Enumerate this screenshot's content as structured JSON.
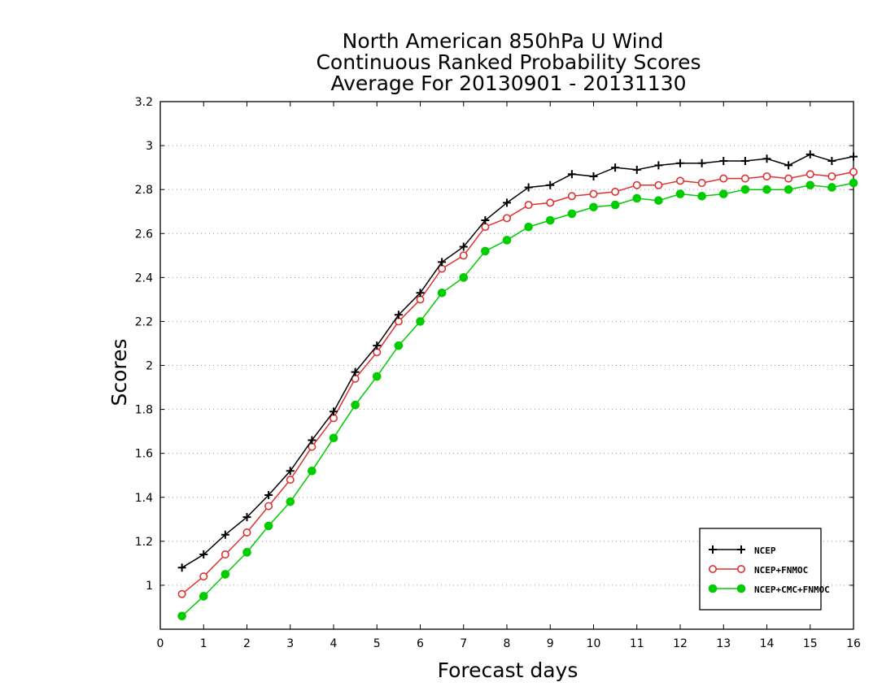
{
  "chart_data": {
    "type": "line",
    "title": "North American 850hPa U Wind",
    "subtitle": [
      "Continuous Ranked Probability Scores",
      "Average For 20130901 - 20131130"
    ],
    "xlabel": "Forecast days",
    "ylabel": "Scores",
    "xlim": [
      0,
      16
    ],
    "ylim": [
      0.8,
      3.2
    ],
    "xticks": [
      "0",
      "1",
      "2",
      "3",
      "4",
      "5",
      "6",
      "7",
      "8",
      "9",
      "10",
      "11",
      "12",
      "13",
      "14",
      "15",
      "16"
    ],
    "yticks": [
      "1",
      "1.2",
      "1.4",
      "1.6",
      "1.8",
      "2",
      "2.2",
      "2.4",
      "2.6",
      "2.8",
      "3",
      "3.2"
    ],
    "grid": "horizontal dotted",
    "legend_position": "bottom-right",
    "x": [
      0.5,
      1,
      1.5,
      2,
      2.5,
      3,
      3.5,
      4,
      4.5,
      5,
      5.5,
      6,
      6.5,
      7,
      7.5,
      8,
      8.5,
      9,
      9.5,
      10,
      10.5,
      11,
      11.5,
      12,
      12.5,
      13,
      13.5,
      14,
      14.5,
      15,
      15.5,
      16
    ],
    "series": [
      {
        "name": "NCEP",
        "color": "#000000",
        "marker": "plus",
        "values": [
          1.08,
          1.14,
          1.23,
          1.31,
          1.41,
          1.52,
          1.66,
          1.79,
          1.97,
          2.09,
          2.23,
          2.33,
          2.47,
          2.54,
          2.66,
          2.74,
          2.81,
          2.82,
          2.87,
          2.86,
          2.9,
          2.89,
          2.91,
          2.92,
          2.92,
          2.93,
          2.93,
          2.94,
          2.91,
          2.96,
          2.93,
          2.95
        ]
      },
      {
        "name": "NCEP+FNMOC",
        "color": "#e03030",
        "marker": "open-circle",
        "values": [
          0.96,
          1.04,
          1.14,
          1.24,
          1.36,
          1.48,
          1.63,
          1.76,
          1.94,
          2.06,
          2.2,
          2.3,
          2.44,
          2.5,
          2.63,
          2.67,
          2.73,
          2.74,
          2.77,
          2.78,
          2.79,
          2.82,
          2.82,
          2.84,
          2.83,
          2.85,
          2.85,
          2.86,
          2.85,
          2.87,
          2.86,
          2.88
        ]
      },
      {
        "name": "NCEP+CMC+FNMOC",
        "color": "#00cc00",
        "marker": "filled-circle",
        "values": [
          0.86,
          0.95,
          1.05,
          1.15,
          1.27,
          1.38,
          1.52,
          1.67,
          1.82,
          1.95,
          2.09,
          2.2,
          2.33,
          2.4,
          2.52,
          2.57,
          2.63,
          2.66,
          2.69,
          2.72,
          2.73,
          2.76,
          2.75,
          2.78,
          2.77,
          2.78,
          2.8,
          2.8,
          2.8,
          2.82,
          2.81,
          2.83
        ]
      }
    ]
  }
}
